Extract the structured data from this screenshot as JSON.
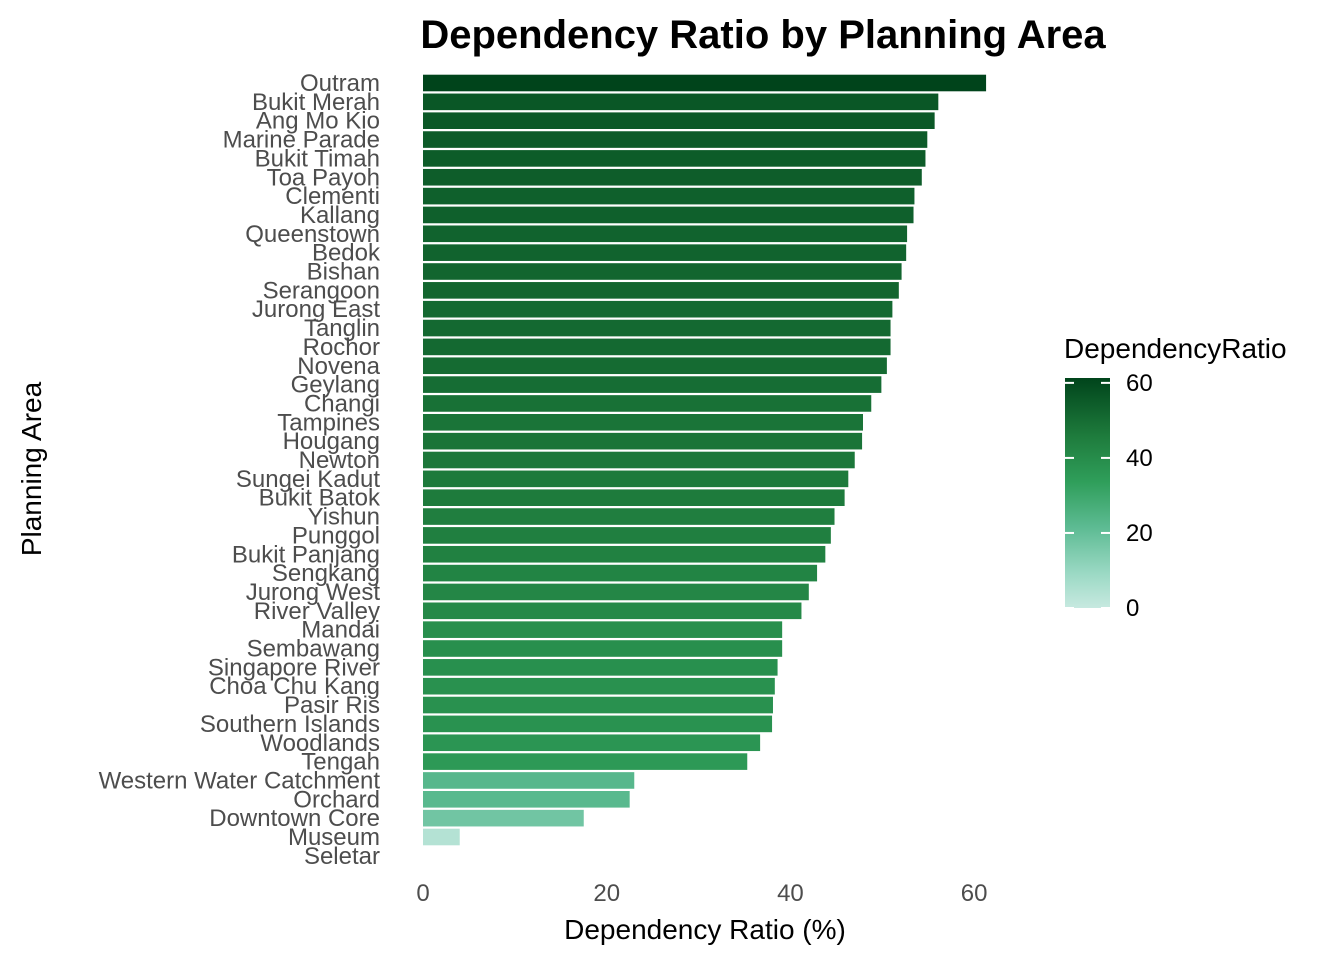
{
  "chart_data": {
    "type": "bar",
    "orientation": "horizontal",
    "title": "Dependency Ratio by Planning Area",
    "xlabel": "Dependency Ratio (%)",
    "ylabel": "Planning Area",
    "xlim": [
      0,
      64
    ],
    "xticks": [
      0,
      20,
      40,
      60
    ],
    "grid": false,
    "legend": {
      "title": "DependencyRatio",
      "position": "right",
      "ticks": [
        0,
        20,
        40,
        60
      ],
      "range": [
        0,
        61.3
      ],
      "colors": [
        "#c7e9e0",
        "#2f9e5a",
        "#00441b"
      ]
    },
    "categories": [
      "Outram",
      "Bukit Merah",
      "Ang Mo Kio",
      "Marine Parade",
      "Bukit Timah",
      "Toa Payoh",
      "Clementi",
      "Kallang",
      "Queenstown",
      "Bedok",
      "Bishan",
      "Serangoon",
      "Jurong East",
      "Tanglin",
      "Rochor",
      "Novena",
      "Geylang",
      "Changi",
      "Tampines",
      "Hougang",
      "Newton",
      "Sungei Kadut",
      "Bukit Batok",
      "Yishun",
      "Punggol",
      "Bukit Panjang",
      "Sengkang",
      "Jurong West",
      "River Valley",
      "Mandai",
      "Sembawang",
      "Singapore River",
      "Choa Chu Kang",
      "Pasir Ris",
      "Southern Islands",
      "Woodlands",
      "Tengah",
      "Western Water Catchment",
      "Orchard",
      "Downtown Core",
      "Museum",
      "Seletar"
    ],
    "values": [
      61.3,
      56.1,
      55.7,
      54.9,
      54.7,
      54.3,
      53.5,
      53.4,
      52.7,
      52.6,
      52.1,
      51.8,
      51.1,
      50.9,
      50.9,
      50.5,
      49.9,
      48.8,
      47.9,
      47.8,
      47.0,
      46.3,
      45.9,
      44.8,
      44.4,
      43.8,
      42.9,
      42.0,
      41.2,
      39.1,
      39.1,
      38.6,
      38.3,
      38.1,
      38.0,
      36.7,
      35.3,
      23.0,
      22.5,
      17.5,
      4.0,
      0.0
    ]
  }
}
